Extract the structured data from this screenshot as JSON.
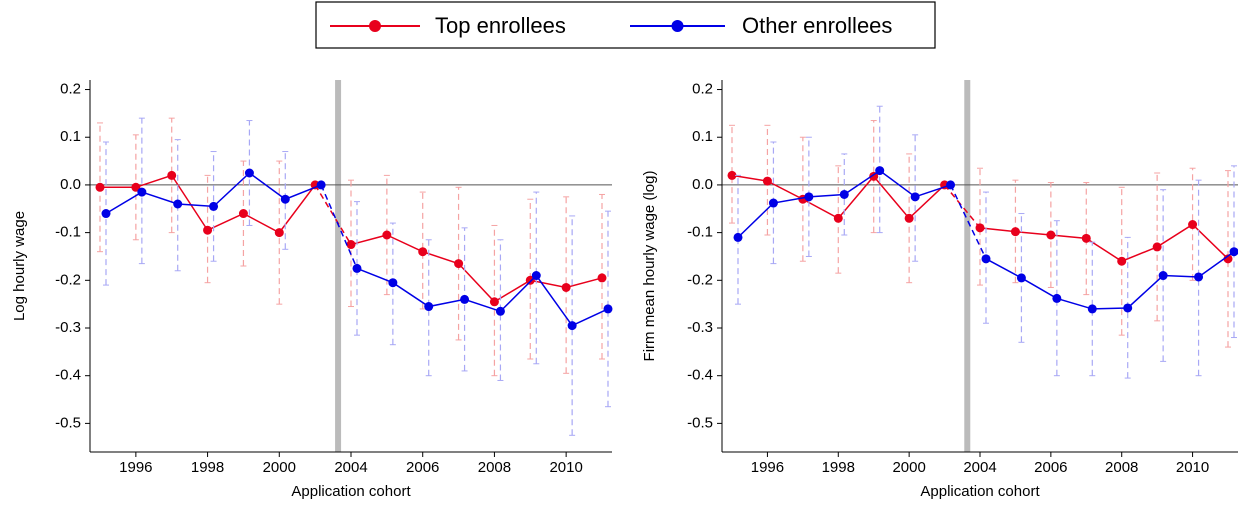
{
  "chart_data": [
    {
      "type": "line",
      "ylabel": "Log hourly wage",
      "xlabel": "Application cohort",
      "categories": [
        null,
        "1996",
        null,
        "1998",
        null,
        "2000",
        null,
        "2004",
        null,
        "2006",
        null,
        "2008",
        null,
        "2010",
        null
      ],
      "ylim": [
        -0.56,
        0.22
      ],
      "yticks": [
        0.2,
        0.1,
        {
          "value": 0,
          "label": "0.0"
        },
        -0.1,
        -0.2,
        -0.3,
        -0.4,
        -0.5
      ],
      "series": [
        {
          "name": "Top enrollees",
          "color": "#e8001c",
          "values": [
            -0.005,
            -0.005,
            0.02,
            -0.095,
            -0.06,
            -0.1,
            0,
            -0.125,
            -0.105,
            -0.14,
            -0.165,
            -0.245,
            -0.2,
            -0.215,
            -0.195
          ],
          "lower": [
            -0.14,
            -0.115,
            -0.1,
            -0.205,
            -0.17,
            -0.25,
            null,
            -0.255,
            -0.23,
            -0.26,
            -0.325,
            -0.4,
            -0.365,
            -0.395,
            -0.365
          ],
          "upper": [
            0.13,
            0.105,
            0.14,
            0.02,
            0.05,
            0.05,
            null,
            0.01,
            0.02,
            -0.015,
            -0.005,
            -0.085,
            -0.03,
            -0.025,
            -0.02
          ]
        },
        {
          "name": "Other enrollees",
          "color": "#0000e6",
          "values": [
            -0.06,
            -0.015,
            -0.04,
            -0.045,
            0.025,
            -0.03,
            0,
            -0.175,
            -0.205,
            -0.255,
            -0.24,
            -0.265,
            -0.19,
            -0.295,
            -0.26
          ],
          "lower": [
            -0.21,
            -0.165,
            -0.18,
            -0.16,
            -0.085,
            -0.135,
            null,
            -0.315,
            -0.335,
            -0.4,
            -0.39,
            -0.41,
            -0.375,
            -0.525,
            -0.465
          ],
          "upper": [
            0.09,
            0.14,
            0.095,
            0.07,
            0.135,
            0.07,
            null,
            -0.035,
            -0.08,
            -0.115,
            -0.09,
            -0.115,
            -0.015,
            -0.065,
            -0.055
          ]
        }
      ]
    },
    {
      "type": "line",
      "ylabel": "Firm mean hourly wage (log)",
      "xlabel": "Application cohort",
      "categories": [
        null,
        "1996",
        null,
        "1998",
        null,
        "2000",
        null,
        "2004",
        null,
        "2006",
        null,
        "2008",
        null,
        "2010",
        null
      ],
      "ylim": [
        -0.56,
        0.22
      ],
      "yticks": [
        0.2,
        0.1,
        {
          "value": 0,
          "label": "0.0"
        },
        -0.1,
        -0.2,
        -0.3,
        -0.4,
        -0.5
      ],
      "series": [
        {
          "color": "#e8001c",
          "values": [
            0.02,
            0.008,
            -0.03,
            -0.07,
            0.018,
            -0.07,
            0,
            -0.09,
            -0.098,
            -0.105,
            -0.112,
            -0.16,
            -0.13,
            -0.083,
            -0.155
          ],
          "lower": [
            -0.08,
            -0.105,
            -0.16,
            -0.185,
            -0.1,
            -0.205,
            null,
            -0.21,
            -0.205,
            -0.215,
            -0.23,
            -0.315,
            -0.285,
            -0.2,
            -0.34
          ],
          "upper": [
            0.125,
            0.125,
            0.1,
            0.04,
            0.135,
            0.065,
            null,
            0.035,
            0.01,
            0.005,
            0.005,
            -0.005,
            0.025,
            0.035,
            0.03
          ]
        },
        {
          "color": "#0000e6",
          "values": [
            -0.11,
            -0.038,
            -0.025,
            -0.02,
            0.03,
            -0.025,
            0,
            -0.155,
            -0.195,
            -0.238,
            -0.26,
            -0.258,
            -0.19,
            -0.193,
            -0.14
          ],
          "lower": [
            -0.25,
            -0.165,
            -0.15,
            -0.105,
            -0.1,
            -0.16,
            null,
            -0.29,
            -0.33,
            -0.4,
            -0.4,
            -0.405,
            -0.37,
            -0.4,
            -0.32
          ],
          "upper": [
            0.02,
            0.09,
            0.1,
            0.065,
            0.165,
            0.105,
            null,
            -0.015,
            -0.06,
            -0.075,
            -0.12,
            -0.11,
            -0.01,
            0.01,
            0.04
          ]
        }
      ]
    }
  ]
}
